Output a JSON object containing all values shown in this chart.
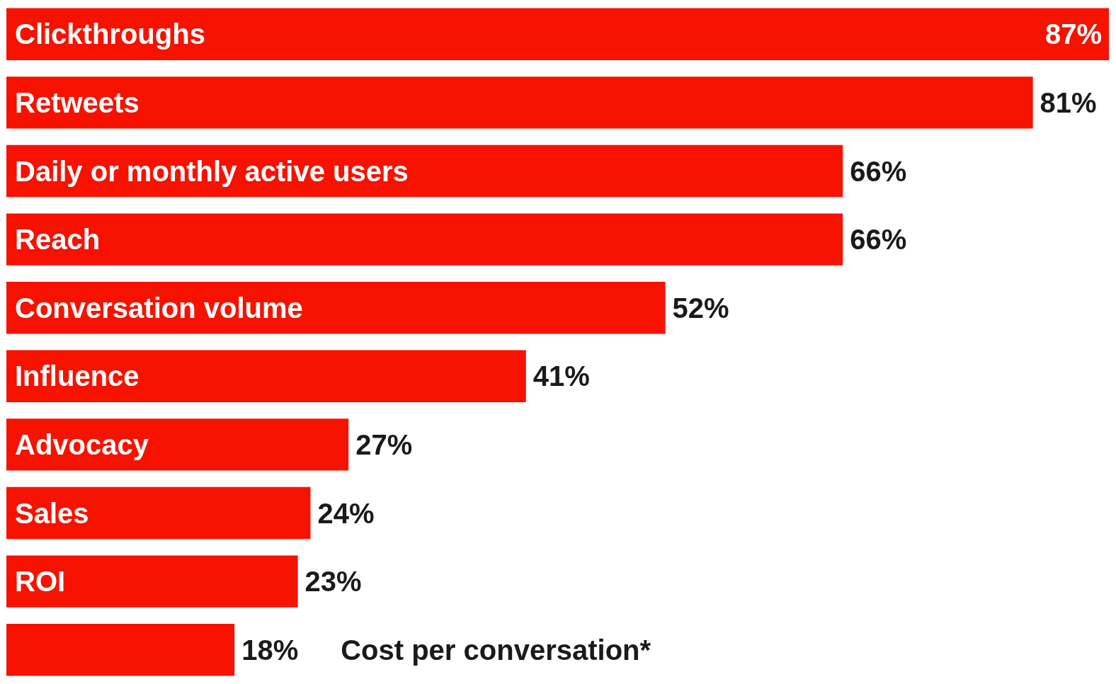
{
  "chart_data": {
    "type": "bar",
    "orientation": "horizontal",
    "categories": [
      "Clickthroughs",
      "Retweets",
      "Daily or monthly active users",
      "Reach",
      "Conversation volume",
      "Influence",
      "Advocacy",
      "Sales",
      "ROI",
      "Cost per conversation*"
    ],
    "values": [
      87,
      81,
      66,
      66,
      52,
      41,
      27,
      24,
      23,
      18
    ],
    "value_labels": [
      "87%",
      "81%",
      "66%",
      "66%",
      "52%",
      "41%",
      "27%",
      "24%",
      "23%",
      "18%"
    ],
    "color": "#f71200"
  }
}
